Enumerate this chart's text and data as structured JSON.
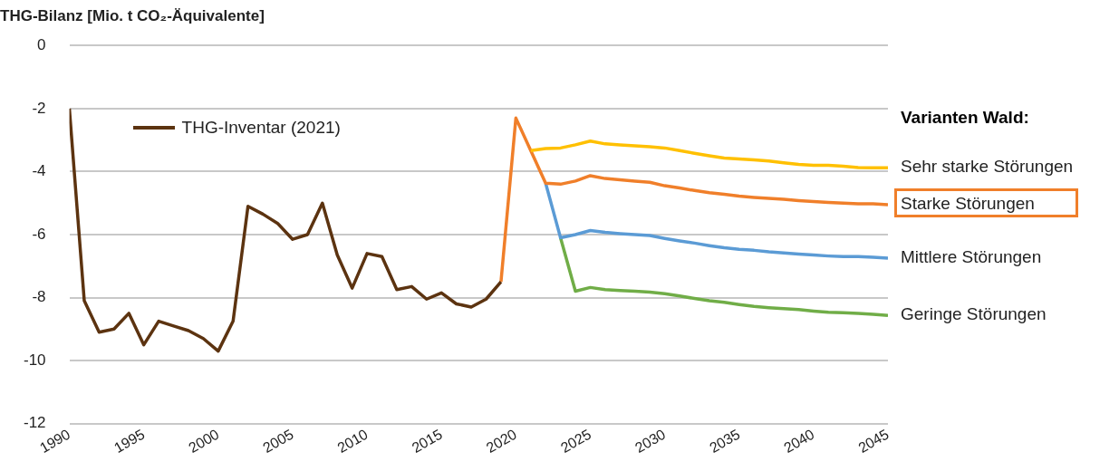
{
  "chart_data": {
    "type": "line",
    "title": "THG-Bilanz [Mio. t CO₂-Äquivalente]",
    "legend_title": "Varianten Wald:",
    "legend": "top left",
    "grid": "y",
    "marker": "none",
    "line_style": "solid",
    "xlim": [
      1990,
      2045
    ],
    "xticks": [
      1990,
      1995,
      2000,
      2005,
      2010,
      2015,
      2020,
      2025,
      2030,
      2035,
      2040,
      2045
    ],
    "ylim": [
      -12,
      0
    ],
    "yticks": [
      0,
      -2,
      -4,
      -6,
      -8,
      -10,
      -12
    ],
    "series": [
      {
        "name": "THG-Inventar (2021)",
        "color": "#5c3310",
        "x": [
          1990,
          1991,
          1992,
          1993,
          1994,
          1995,
          1996,
          1997,
          1998,
          1999,
          2000,
          2001,
          2002,
          2003,
          2004,
          2005,
          2006,
          2007,
          2008,
          2009,
          2010,
          2011,
          2012,
          2013,
          2014,
          2015,
          2016,
          2017,
          2018,
          2019
        ],
        "values": [
          -2.0,
          -8.1,
          -9.1,
          -9.0,
          -8.5,
          -9.5,
          -8.75,
          -8.9,
          -9.05,
          -9.3,
          -9.7,
          -8.75,
          -5.1,
          -5.35,
          -5.65,
          -6.15,
          -6.0,
          -5.0,
          -6.65,
          -7.7,
          -6.6,
          -6.7,
          -7.75,
          -7.65,
          -8.05,
          -7.85,
          -8.2,
          -8.3,
          -8.05,
          -7.5
        ]
      },
      {
        "name": "Sehr starke Störungen",
        "color": "#ffc000",
        "x": [
          2021,
          2022,
          2023,
          2024,
          2025,
          2026,
          2027,
          2028,
          2029,
          2030,
          2031,
          2032,
          2033,
          2034,
          2035,
          2036,
          2037,
          2038,
          2039,
          2040,
          2041,
          2042,
          2043,
          2044,
          2045
        ],
        "values": [
          -3.33,
          -3.27,
          -3.25,
          -3.15,
          -3.03,
          -3.12,
          -3.15,
          -3.18,
          -3.21,
          -3.25,
          -3.33,
          -3.42,
          -3.5,
          -3.57,
          -3.6,
          -3.63,
          -3.66,
          -3.72,
          -3.77,
          -3.8,
          -3.8,
          -3.83,
          -3.87,
          -3.88,
          -3.88
        ]
      },
      {
        "name": "Starke Störungen",
        "color": "#f07f2a",
        "x": [
          2019,
          2020,
          2021,
          2022,
          2023,
          2024,
          2025,
          2026,
          2027,
          2028,
          2029,
          2030,
          2031,
          2032,
          2033,
          2034,
          2035,
          2036,
          2037,
          2038,
          2039,
          2040,
          2041,
          2042,
          2043,
          2044,
          2045
        ],
        "values": [
          -7.5,
          -2.3,
          -3.33,
          -4.37,
          -4.4,
          -4.3,
          -4.13,
          -4.22,
          -4.26,
          -4.3,
          -4.34,
          -4.45,
          -4.52,
          -4.6,
          -4.67,
          -4.72,
          -4.78,
          -4.82,
          -4.85,
          -4.88,
          -4.92,
          -4.95,
          -4.98,
          -5.0,
          -5.02,
          -5.02,
          -5.05
        ]
      },
      {
        "name": "Mittlere Störungen",
        "color": "#5b9bd5",
        "x": [
          2022,
          2023,
          2024,
          2025,
          2026,
          2027,
          2028,
          2029,
          2030,
          2031,
          2032,
          2033,
          2034,
          2035,
          2036,
          2037,
          2038,
          2039,
          2040,
          2041,
          2042,
          2043,
          2044,
          2045
        ],
        "values": [
          -4.37,
          -6.1,
          -6.0,
          -5.87,
          -5.93,
          -5.97,
          -6.0,
          -6.03,
          -6.12,
          -6.2,
          -6.27,
          -6.35,
          -6.42,
          -6.47,
          -6.5,
          -6.55,
          -6.58,
          -6.62,
          -6.65,
          -6.68,
          -6.7,
          -6.7,
          -6.72,
          -6.75
        ]
      },
      {
        "name": "Geringe Störungen",
        "color": "#70ad47",
        "x": [
          2023,
          2024,
          2025,
          2026,
          2027,
          2028,
          2029,
          2030,
          2031,
          2032,
          2033,
          2034,
          2035,
          2036,
          2037,
          2038,
          2039,
          2040,
          2041,
          2042,
          2043,
          2044,
          2045
        ],
        "values": [
          -6.1,
          -7.8,
          -7.68,
          -7.75,
          -7.78,
          -7.8,
          -7.83,
          -7.88,
          -7.95,
          -8.03,
          -8.1,
          -8.15,
          -8.22,
          -8.28,
          -8.32,
          -8.35,
          -8.38,
          -8.43,
          -8.47,
          -8.48,
          -8.5,
          -8.53,
          -8.57
        ]
      }
    ]
  }
}
